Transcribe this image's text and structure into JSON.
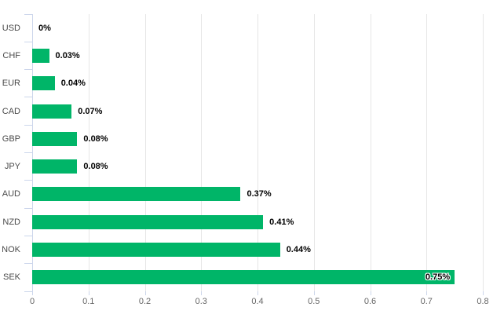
{
  "chart_data": {
    "type": "bar",
    "orientation": "horizontal",
    "title": "",
    "unit": "%",
    "categories": [
      "USD",
      "CHF",
      "EUR",
      "CAD",
      "GBP",
      "JPY",
      "AUD",
      "NZD",
      "NOK",
      "SEK"
    ],
    "values": [
      0,
      0.03,
      0.04,
      0.07,
      0.08,
      0.08,
      0.37,
      0.41,
      0.44,
      0.75
    ],
    "data_labels": [
      "0%",
      "0.03%",
      "0.04%",
      "0.07%",
      "0.08%",
      "0.08%",
      "0.37%",
      "0.41%",
      "0.44%",
      "0.75%"
    ],
    "label_inside": [
      false,
      false,
      false,
      false,
      false,
      false,
      false,
      false,
      false,
      true
    ],
    "x_tick_labels": [
      "0",
      "0.1",
      "0.2",
      "0.3",
      "0.4",
      "0.5",
      "0.6",
      "0.7",
      "0.8"
    ],
    "xlim": [
      0,
      0.8
    ],
    "grid": true,
    "legend_position": "none",
    "colors": {
      "bar": "#00b568",
      "axis_line": "#ccd6eb",
      "gridline": "#e6e6e6",
      "category_label": "#4a4a4a",
      "tick_label": "#666666",
      "data_label": "#000000",
      "data_label_halo": "#ffffff",
      "background": "#ffffff"
    }
  }
}
